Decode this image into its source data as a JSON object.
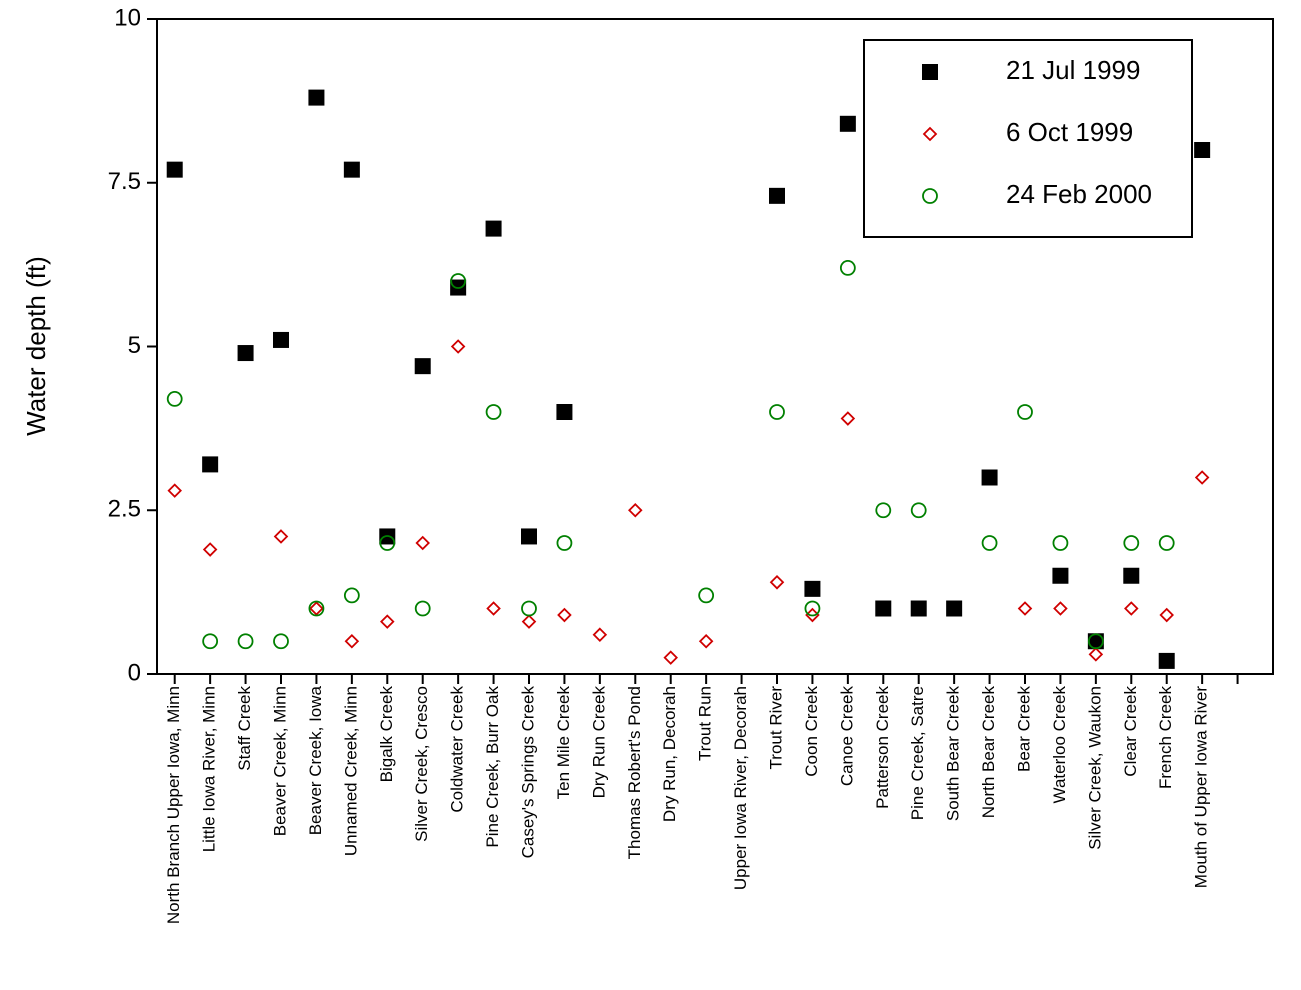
{
  "chart_data": {
    "type": "scatter",
    "y_label": "Water depth (ft)",
    "categories": [
      "North Branch Upper Iowa, Minn",
      "Little Iowa River, Minn",
      "Staff Creek",
      "Beaver Creek, Minn",
      "Beaver Creek, Iowa",
      "Unnamed Creek, Minn",
      "Bigalk Creek",
      "Silver Creek, Cresco",
      "Coldwater Creek",
      "Pine Creek, Burr Oak",
      "Casey's Springs Creek",
      "Ten Mile Creek",
      "Dry Run Creek",
      "Thomas Robert's Pond",
      "Dry Run, Decorah",
      "Trout Run",
      "Upper Iowa River, Decorah",
      "Trout River",
      "Coon Creek",
      "Canoe Creek",
      "Patterson Creek",
      "Pine Creek, Satre",
      "South Bear Creek",
      "North Bear Creek",
      "Bear Creek",
      "Waterloo Creek",
      "Silver Creek, Waukon",
      "Clear Creek",
      "French Creek",
      "Mouth of Upper Iowa River",
      null
    ],
    "series": [
      {
        "name": "21 Jul 1999",
        "color": "#000000",
        "marker": "square",
        "values": [
          7.7,
          3.2,
          4.9,
          5.1,
          8.8,
          7.7,
          2.1,
          4.7,
          5.9,
          6.8,
          2.1,
          4,
          null,
          null,
          null,
          null,
          null,
          7.3,
          1.3,
          8.4,
          1,
          1,
          1,
          3,
          null,
          1.5,
          0.5,
          1.5,
          0.2,
          8,
          null
        ]
      },
      {
        "name": "6 Oct 1999",
        "color": "#d00000",
        "marker": "diamond",
        "values": [
          2.8,
          1.9,
          null,
          2.1,
          1,
          0.5,
          0.8,
          2,
          5,
          1,
          0.8,
          0.9,
          0.6,
          2.5,
          0.25,
          0.5,
          null,
          1.4,
          0.9,
          3.9,
          null,
          null,
          null,
          null,
          1,
          1,
          0.3,
          1,
          0.9,
          3,
          null
        ]
      },
      {
        "name": "24 Feb 2000",
        "color": "#008000",
        "marker": "circle",
        "values": [
          4.2,
          0.5,
          0.5,
          0.5,
          1,
          1.2,
          2,
          1,
          6,
          4,
          1,
          2,
          null,
          null,
          null,
          1.2,
          null,
          4,
          1,
          6.2,
          2.5,
          2.5,
          null,
          2,
          4,
          2,
          0.5,
          2,
          2,
          null,
          null
        ]
      }
    ],
    "ylim": [
      0,
      10
    ],
    "yticks": [
      0,
      2.5,
      5,
      7.5,
      10
    ],
    "legend": "top-right"
  }
}
